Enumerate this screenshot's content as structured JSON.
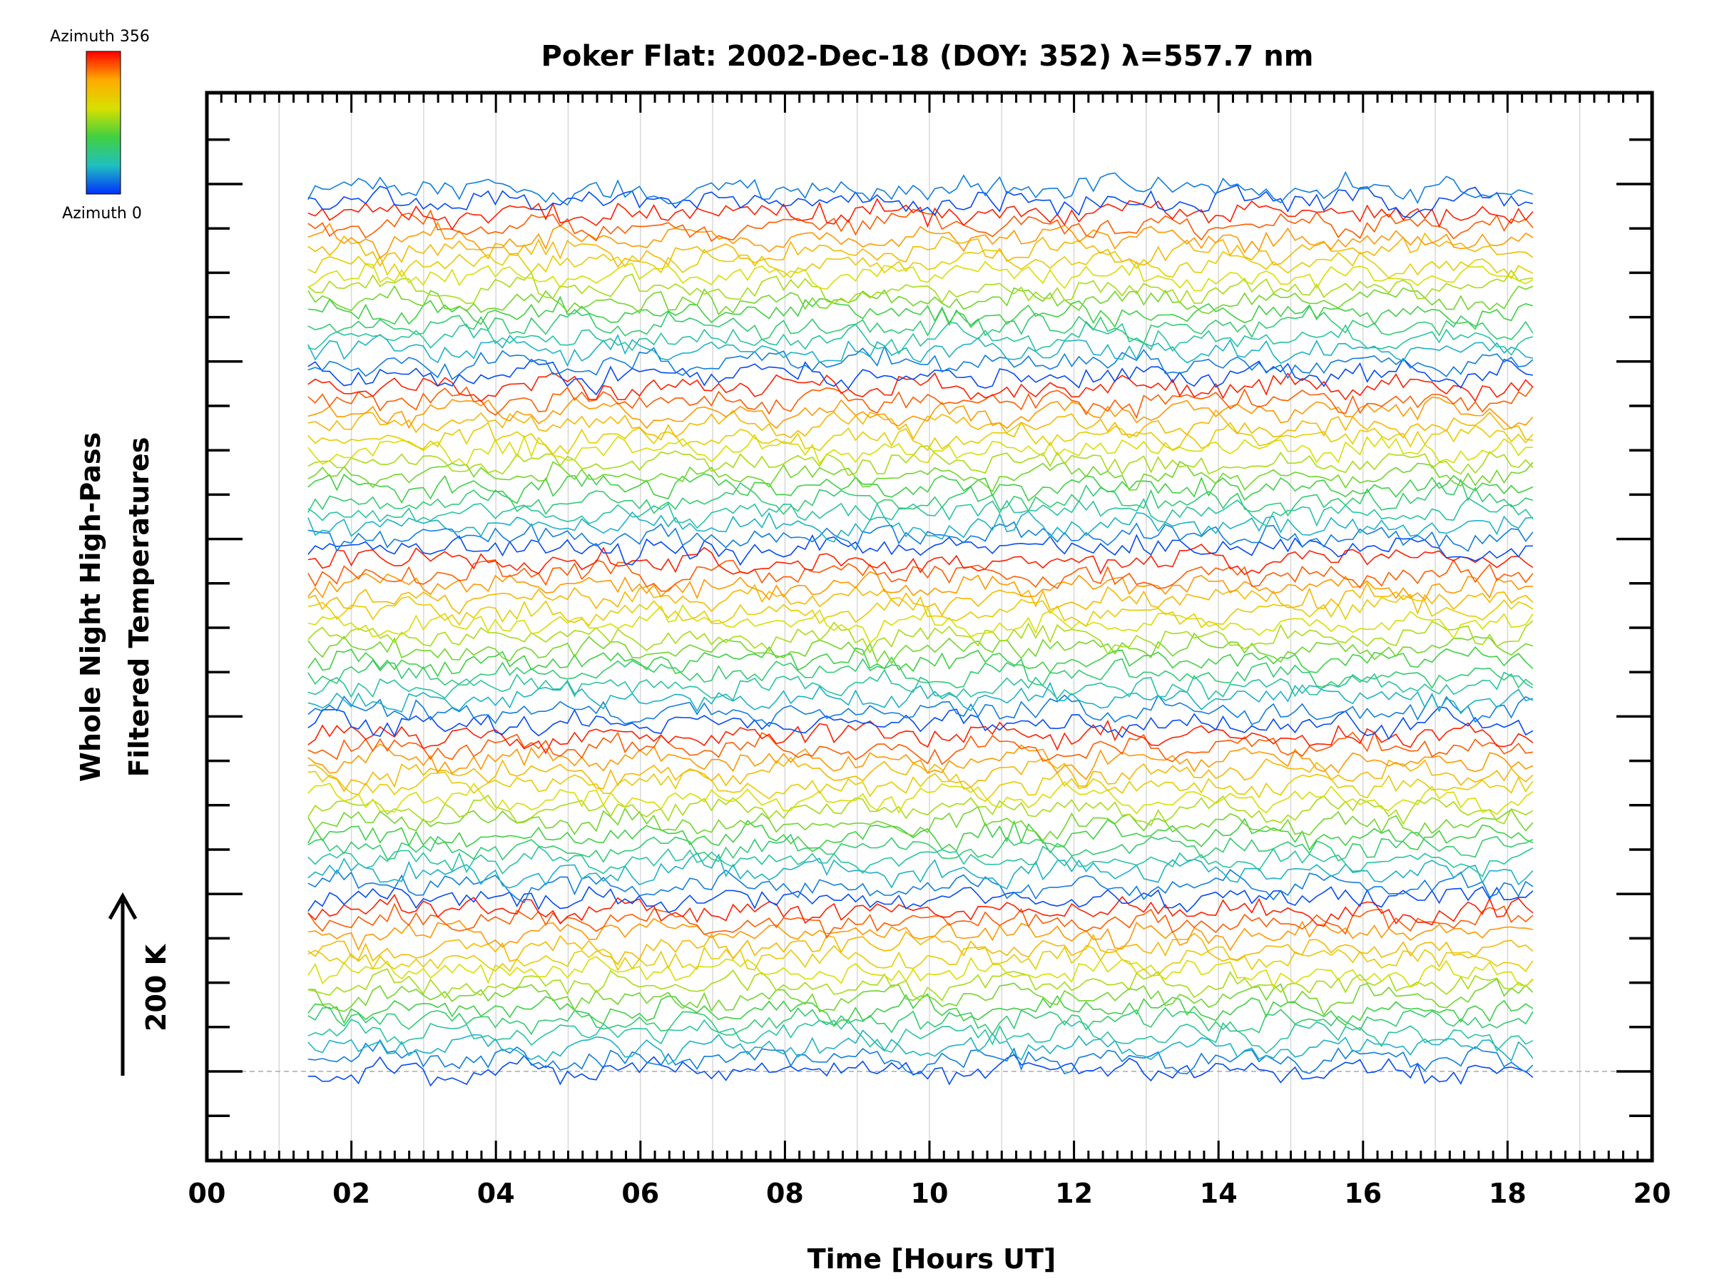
{
  "chart_data": {
    "type": "line",
    "title": "Poker Flat: 2002-Dec-18 (DOY: 352) λ=557.7 nm",
    "xlabel": "Time [Hours UT]",
    "ylabel_lines": [
      "Whole Night High-Pass",
      "Filtered Temperatures"
    ],
    "scale_label": "200 K",
    "xlim": [
      0,
      20
    ],
    "x_ticks": [
      "00",
      "02",
      "04",
      "06",
      "08",
      "10",
      "12",
      "14",
      "16",
      "18",
      "20"
    ],
    "x_start": 1.4,
    "x_end": 18.35,
    "n_traces": 72,
    "colorbar": {
      "top_label": "Azimuth 356",
      "bottom_label": "Azimuth 0",
      "colors": [
        "#ff0000",
        "#ffaa00",
        "#d8e000",
        "#40d040",
        "#20c0c0",
        "#0030ff"
      ]
    },
    "grid": true
  }
}
